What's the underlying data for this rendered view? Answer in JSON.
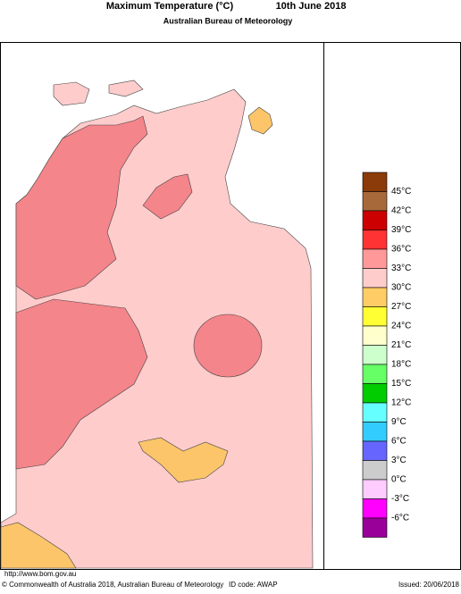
{
  "header": {
    "title": "Maximum Temperature (°C)",
    "date": "10th June 2018",
    "subtitle": "Australian Bureau of Meteorology"
  },
  "legend": {
    "colors": [
      "#8b3a0a",
      "#a8693a",
      "#cc0000",
      "#ff3333",
      "#ff9999",
      "#ffcccc",
      "#ffcc66",
      "#ffff33",
      "#ffffcc",
      "#ccffcc",
      "#66ff66",
      "#00cc00",
      "#66ffff",
      "#33ccff",
      "#6666ff",
      "#cccccc",
      "#ffccff",
      "#ff00ff",
      "#990099"
    ],
    "labels": [
      "45°C",
      "42°C",
      "39°C",
      "36°C",
      "33°C",
      "30°C",
      "27°C",
      "24°C",
      "21°C",
      "18°C",
      "15°C",
      "12°C",
      "9°C",
      "6°C",
      "3°C",
      "0°C",
      "-3°C",
      "-6°C"
    ]
  },
  "footer": {
    "url": "http://www.bom.gov.au",
    "copyright": "© Commonwealth of Australia 2018, Australian Bureau of Meteorology",
    "id_code": "ID code: AWAP",
    "issued": "Issued: 20/06/2018"
  }
}
